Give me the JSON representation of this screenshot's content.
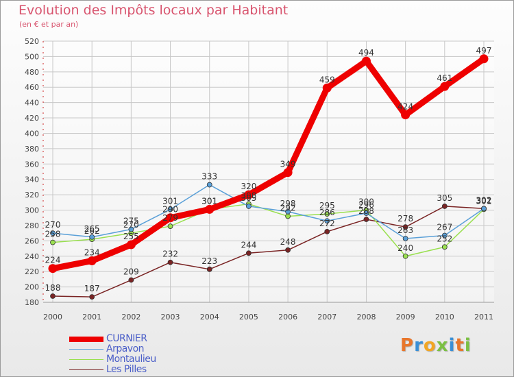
{
  "header": {
    "title": "Evolution des Impôts locaux par Habitant",
    "subtitle": "(en € et par an)"
  },
  "logo": {
    "letters": [
      "P",
      "r",
      "o",
      "x",
      "i",
      "t",
      "i"
    ],
    "colors": [
      "#e8762b",
      "#3a8fd6",
      "#f2a623",
      "#7bc043",
      "#3a8fd6",
      "#e8762b",
      "#7bc043"
    ]
  },
  "chart_data": {
    "type": "line",
    "title": "Evolution des Impôts locaux par Habitant",
    "subtitle": "(en € et par an)",
    "xlabel": "",
    "ylabel": "",
    "x": [
      "2000",
      "2001",
      "2002",
      "2003",
      "2004",
      "2005",
      "2006",
      "2007",
      "2008",
      "2009",
      "2010",
      "2011"
    ],
    "ylim": [
      180,
      520
    ],
    "yticks": [
      180,
      200,
      220,
      240,
      260,
      280,
      300,
      320,
      340,
      360,
      380,
      400,
      420,
      440,
      460,
      480,
      500,
      520
    ],
    "legend_position": "bottom-left",
    "series": [
      {
        "name": "CURNIER",
        "color": "#ee0000",
        "values": [
          224,
          234,
          255,
          290,
          301,
          320,
          349,
          459,
          494,
          424,
          461,
          497
        ],
        "labels": [
          "224",
          "234",
          "255",
          "290",
          "301",
          "320",
          "349",
          "459",
          "494",
          "424",
          "461",
          "497"
        ]
      },
      {
        "name": "Arpavon",
        "color": "#5aa0d8",
        "values": [
          270,
          265,
          275,
          301,
          333,
          305,
          298,
          286,
          296,
          263,
          267,
          302
        ],
        "labels": [
          "270",
          "265",
          "275",
          "301",
          "333",
          "305",
          "298",
          "286",
          "296",
          "263",
          "267",
          "302"
        ]
      },
      {
        "name": "Montaulieu",
        "color": "#9ae050",
        "values": [
          258,
          262,
          270,
          279,
          301,
          308,
          292,
          295,
          300,
          240,
          252,
          301
        ],
        "labels": [
          "258",
          "262",
          "270",
          "279",
          "301",
          "308",
          "292",
          "295",
          "300",
          "240",
          "252",
          "301"
        ]
      },
      {
        "name": "Les Pilles",
        "color": "#7a2424",
        "values": [
          188,
          187,
          209,
          232,
          223,
          244,
          248,
          272,
          288,
          278,
          305,
          302
        ],
        "labels": [
          "188",
          "187",
          "209",
          "232",
          "223",
          "244",
          "248",
          "272",
          "288",
          "278",
          "305",
          "302"
        ]
      }
    ]
  }
}
